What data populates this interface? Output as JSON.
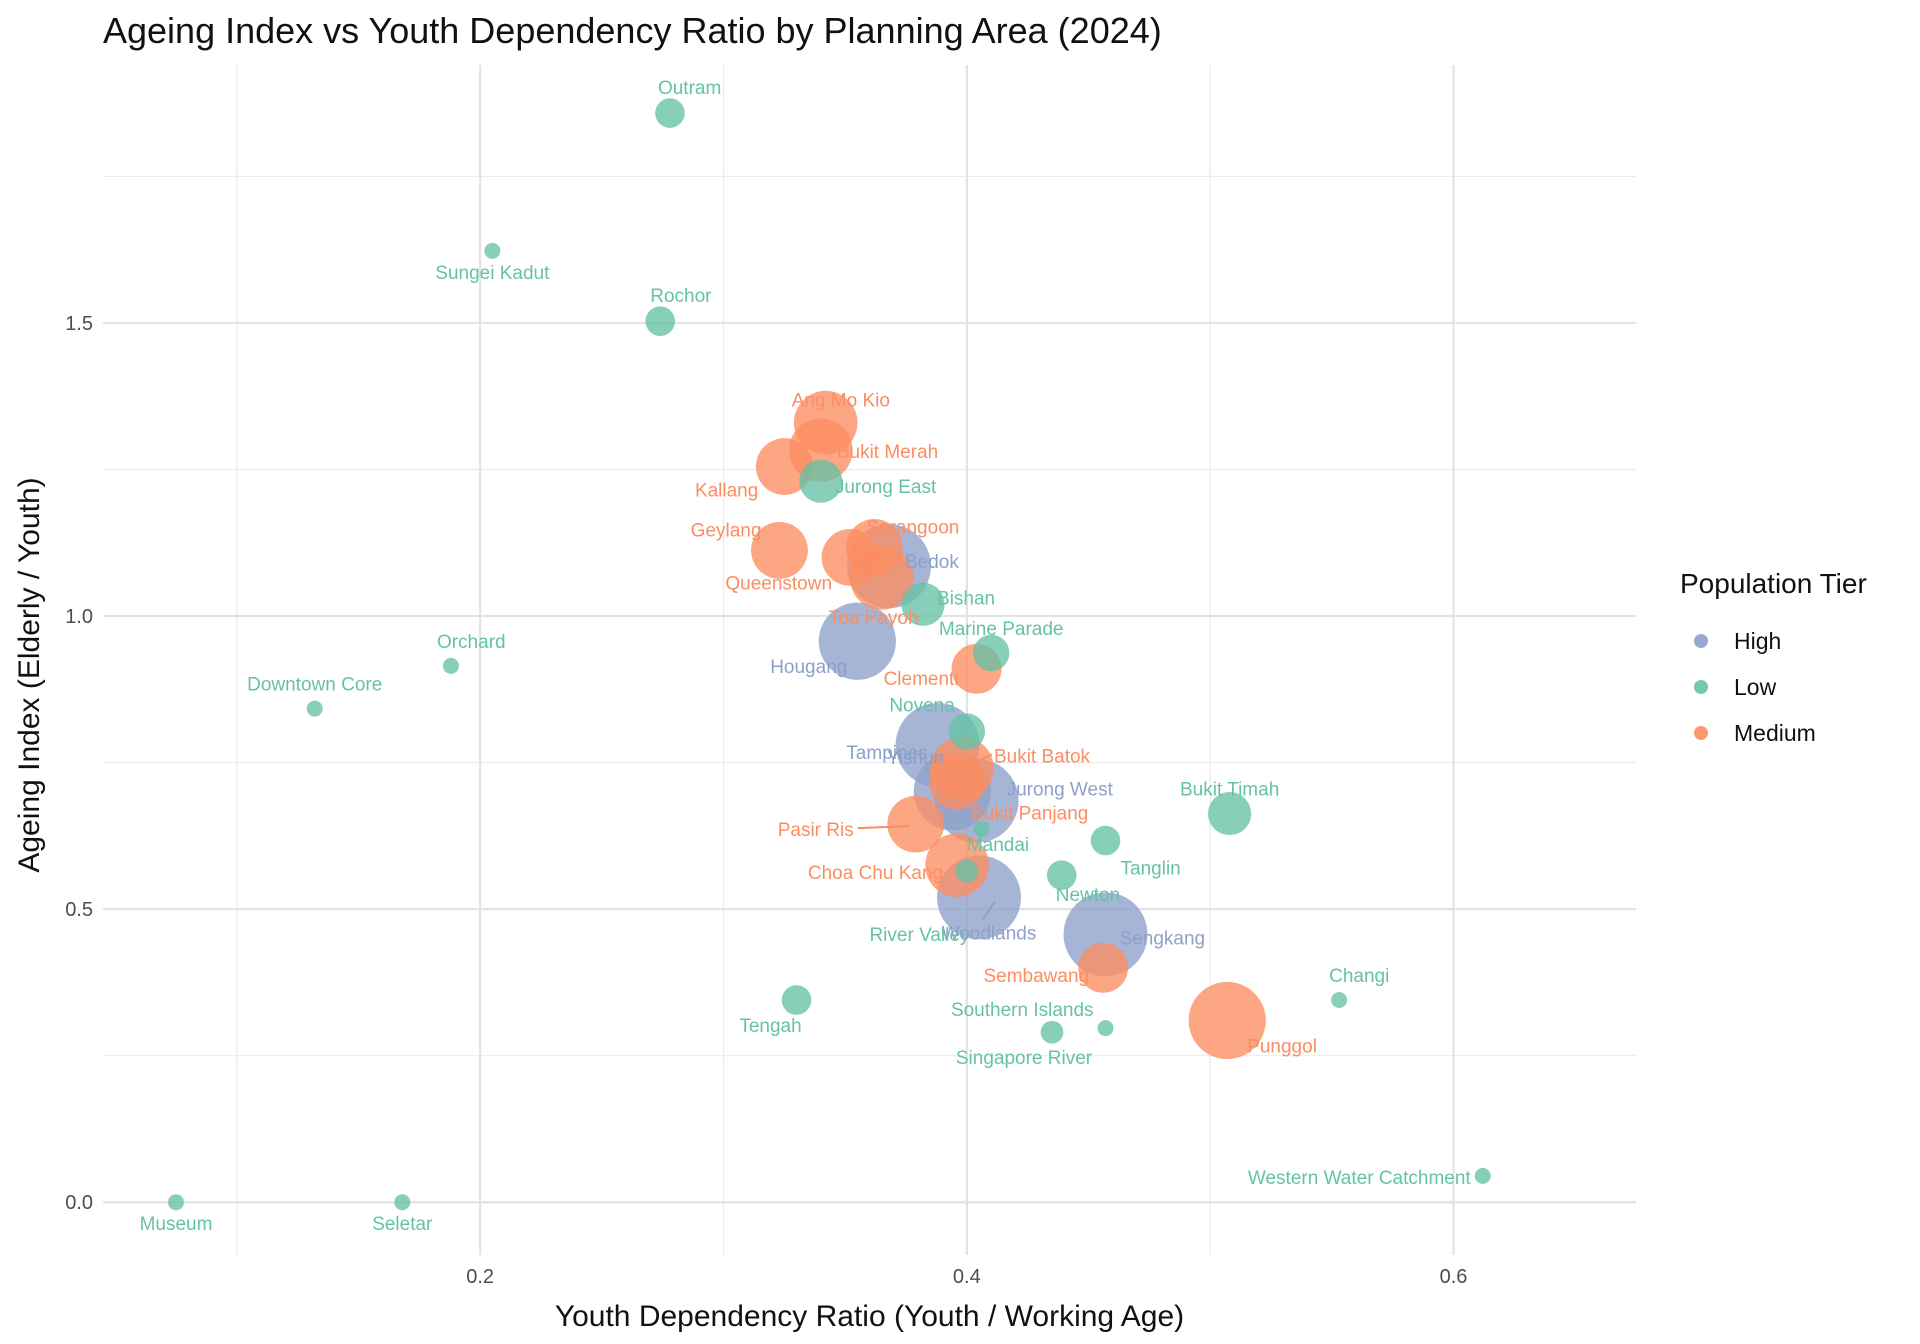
{
  "chart_data": {
    "type": "scatter",
    "title": "Ageing Index vs Youth Dependency Ratio by Planning Area (2024)",
    "xlabel": "Youth Dependency Ratio (Youth / Working Age)",
    "ylabel": "Ageing Index (Elderly / Youth)",
    "xlim": [
      0.045,
      0.675
    ],
    "ylim": [
      -0.09,
      1.94
    ],
    "x_ticks": [
      0.2,
      0.4,
      0.6
    ],
    "x_tick_labels": [
      "0.2",
      "0.4",
      "0.6"
    ],
    "y_ticks": [
      0.0,
      0.5,
      1.0,
      1.5
    ],
    "y_tick_labels": [
      "0.0",
      "0.5",
      "1.0",
      "1.5"
    ],
    "grid": true,
    "legend_title": "Population Tier",
    "legend_position": "right",
    "series": [
      {
        "name": "High",
        "color": "#8da0cb"
      },
      {
        "name": "Low",
        "color": "#66c2a5"
      },
      {
        "name": "Medium",
        "color": "#fc8d62"
      }
    ],
    "points": [
      {
        "label": "Outram",
        "tier": "Low",
        "x": 0.278,
        "y": 1.858,
        "size": 1
      },
      {
        "label": "Sungei Kadut",
        "tier": "Low",
        "x": 0.205,
        "y": 1.623,
        "size": 0
      },
      {
        "label": "Rochor",
        "tier": "Low",
        "x": 0.274,
        "y": 1.503,
        "size": 1
      },
      {
        "label": "Orchard",
        "tier": "Low",
        "x": 0.188,
        "y": 0.915,
        "size": 0
      },
      {
        "label": "Downtown Core",
        "tier": "Low",
        "x": 0.132,
        "y": 0.842,
        "size": 0
      },
      {
        "label": "Museum",
        "tier": "Low",
        "x": 0.075,
        "y": 0.0,
        "size": 0
      },
      {
        "label": "Seletar",
        "tier": "Low",
        "x": 0.168,
        "y": 0.0,
        "size": 0
      },
      {
        "label": "Jurong East",
        "tier": "Low",
        "x": 0.34,
        "y": 1.23,
        "size": 2
      },
      {
        "label": "Bishan",
        "tier": "Low",
        "x": 0.382,
        "y": 1.02,
        "size": 2
      },
      {
        "label": "Marine Parade",
        "tier": "Low",
        "x": 0.41,
        "y": 0.937,
        "size": 1.5
      },
      {
        "label": "Novena",
        "tier": "Low",
        "x": 0.4,
        "y": 0.803,
        "size": 1.5
      },
      {
        "label": "Bukit Timah",
        "tier": "Low",
        "x": 0.508,
        "y": 0.663,
        "size": 2
      },
      {
        "label": "Tanglin",
        "tier": "Low",
        "x": 0.457,
        "y": 0.617,
        "size": 1
      },
      {
        "label": "Mandai",
        "tier": "Low",
        "x": 0.4,
        "y": 0.565,
        "size": 0.5
      },
      {
        "label": "Newton",
        "tier": "Low",
        "x": 0.439,
        "y": 0.558,
        "size": 1
      },
      {
        "label": "River Valley",
        "tier": "Low",
        "x": 0.406,
        "y": 0.637,
        "size": 0
      },
      {
        "label": "Tengah",
        "tier": "Low",
        "x": 0.33,
        "y": 0.345,
        "size": 1
      },
      {
        "label": "Southern Islands",
        "tier": "Low",
        "x": 0.457,
        "y": 0.297,
        "size": 0
      },
      {
        "label": "Singapore River",
        "tier": "Low",
        "x": 0.435,
        "y": 0.29,
        "size": 0.5
      },
      {
        "label": "Changi",
        "tier": "Low",
        "x": 0.553,
        "y": 0.345,
        "size": 0
      },
      {
        "label": "Western Water Catchment",
        "tier": "Low",
        "x": 0.612,
        "y": 0.045,
        "size": 0
      },
      {
        "label": "Ang Mo Kio",
        "tier": "Medium",
        "x": 0.342,
        "y": 1.33,
        "size": 3.5
      },
      {
        "label": "Bukit Merah",
        "tier": "Medium",
        "x": 0.34,
        "y": 1.283,
        "size": 3.5
      },
      {
        "label": "Kallang",
        "tier": "Medium",
        "x": 0.325,
        "y": 1.255,
        "size": 3
      },
      {
        "label": "Geylang",
        "tier": "Medium",
        "x": 0.323,
        "y": 1.112,
        "size": 3
      },
      {
        "label": "Serangoon",
        "tier": "Medium",
        "x": 0.362,
        "y": 1.117,
        "size": 3
      },
      {
        "label": "Queenstown",
        "tier": "Medium",
        "x": 0.352,
        "y": 1.1,
        "size": 3
      },
      {
        "label": "Toa Payoh",
        "tier": "Medium",
        "x": 0.365,
        "y": 1.065,
        "size": 3.5
      },
      {
        "label": "Clementi",
        "tier": "Medium",
        "x": 0.404,
        "y": 0.91,
        "size": 2.5
      },
      {
        "label": "Bukit Batok",
        "tier": "Medium",
        "x": 0.398,
        "y": 0.74,
        "size": 3.5
      },
      {
        "label": "Bukit Panjang",
        "tier": "Medium",
        "x": 0.396,
        "y": 0.718,
        "size": 3
      },
      {
        "label": "Pasir Ris",
        "tier": "Medium",
        "x": 0.379,
        "y": 0.645,
        "size": 3
      },
      {
        "label": "Choa Chu Kang",
        "tier": "Medium",
        "x": 0.396,
        "y": 0.575,
        "size": 3.5
      },
      {
        "label": "Sembawang",
        "tier": "Medium",
        "x": 0.456,
        "y": 0.4,
        "size": 2.5
      },
      {
        "label": "Punggol",
        "tier": "Medium",
        "x": 0.507,
        "y": 0.31,
        "size": 4.5
      },
      {
        "label": "Bedok",
        "tier": "High",
        "x": 0.368,
        "y": 1.085,
        "size": 5
      },
      {
        "label": "Hougang",
        "tier": "High",
        "x": 0.355,
        "y": 0.957,
        "size": 4.5
      },
      {
        "label": "Tampines",
        "tier": "High",
        "x": 0.388,
        "y": 0.78,
        "size": 5
      },
      {
        "label": "Yishun",
        "tier": "High",
        "x": 0.394,
        "y": 0.7,
        "size": 4.5
      },
      {
        "label": "Jurong West",
        "tier": "High",
        "x": 0.404,
        "y": 0.685,
        "size": 5
      },
      {
        "label": "Woodlands",
        "tier": "High",
        "x": 0.405,
        "y": 0.52,
        "size": 5
      },
      {
        "label": "Sengkang",
        "tier": "High",
        "x": 0.457,
        "y": 0.457,
        "size": 5
      }
    ]
  }
}
